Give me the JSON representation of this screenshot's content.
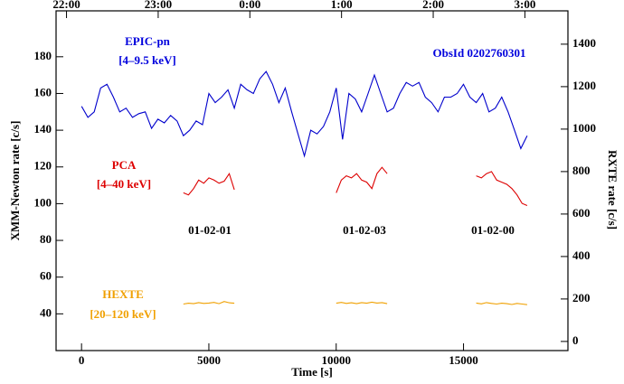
{
  "chart_data": {
    "type": "line",
    "xlabel": "Time [s]",
    "ylabel": "XMM-Newton rate [c/s]",
    "y2label": "RXTE rate [c/s]",
    "xlim": [
      -1000,
      19100
    ],
    "xticks": [
      0,
      5000,
      10000,
      15000
    ],
    "x2ticks": [
      {
        "value": -590,
        "label": "22:00"
      },
      {
        "value": 3010,
        "label": "23:00"
      },
      {
        "value": 6610,
        "label": "0:00"
      },
      {
        "value": 10210,
        "label": "1:00"
      },
      {
        "value": 13810,
        "label": "2:00"
      },
      {
        "value": 17410,
        "label": "3:00"
      }
    ],
    "ylim": [
      20,
      205
    ],
    "yticks": [
      40,
      60,
      80,
      100,
      120,
      140,
      160,
      180
    ],
    "y2lim": [
      -43,
      1557
    ],
    "y2ticks": [
      0,
      200,
      400,
      600,
      800,
      1000,
      1200,
      1400
    ],
    "annotations": [
      {
        "text": "EPIC-pn",
        "color": "#0000dd"
      },
      {
        "text": "[4–9.5 keV]",
        "color": "#0000dd"
      },
      {
        "text": "ObsId 0202760301",
        "color": "#0000dd"
      },
      {
        "text": "PCA",
        "color": "#dd0000"
      },
      {
        "text": "[4–40 keV]",
        "color": "#dd0000"
      },
      {
        "text": "01-02-01",
        "color": "#000000"
      },
      {
        "text": "01-02-03",
        "color": "#000000"
      },
      {
        "text": "01-02-00",
        "color": "#000000"
      },
      {
        "text": "HEXTE",
        "color": "#f0a000"
      },
      {
        "text": "[20–120 keV]",
        "color": "#f0a000"
      }
    ],
    "series": [
      {
        "color": "#0000cc",
        "axis": "y",
        "x": [
          0,
          250,
          500,
          750,
          1000,
          1250,
          1500,
          1750,
          2000,
          2250,
          2500,
          2750,
          3000,
          3250,
          3500,
          3750,
          4000,
          4250,
          4500,
          4750,
          5000,
          5250,
          5500,
          5750,
          6000,
          6250,
          6500,
          6750,
          7000,
          7250,
          7500,
          7750,
          8000,
          8250,
          8500,
          8750,
          9000,
          9250,
          9500,
          9750,
          10000,
          10250,
          10500,
          10750,
          11000,
          11250,
          11500,
          11750,
          12000,
          12250,
          12500,
          12750,
          13000,
          13250,
          13500,
          13750,
          14000,
          14250,
          14500,
          14750,
          15000,
          15250,
          15500,
          15750,
          16000,
          16250,
          16500,
          16750,
          17000,
          17250,
          17500
        ],
        "values": [
          153,
          147,
          150,
          163,
          165,
          158,
          150,
          152,
          147,
          149,
          150,
          141,
          146,
          144,
          148,
          145,
          137,
          140,
          145,
          143,
          160,
          155,
          158,
          162,
          152,
          165,
          162,
          160,
          168,
          172,
          165,
          155,
          163,
          150,
          138,
          126,
          140,
          138,
          142,
          150,
          163,
          135,
          160,
          157,
          150,
          160,
          170,
          160,
          150,
          152,
          160,
          166,
          164,
          166,
          158,
          155,
          150,
          158,
          158,
          160,
          165,
          158,
          155,
          160,
          150,
          152,
          158,
          150,
          140,
          130,
          137
        ]
      },
      {
        "color": "#dd0000",
        "axis": "y2",
        "x": [
          4000,
          4200,
          4400,
          4600,
          4800,
          5000,
          5200,
          5400,
          5600,
          5800,
          6000,
          null,
          10000,
          10200,
          10400,
          10600,
          10800,
          11000,
          11200,
          11400,
          11600,
          11800,
          12000,
          null,
          15500,
          15700,
          15900,
          16100,
          16300,
          16500,
          16700,
          16900,
          17100,
          17300,
          17500
        ],
        "values": [
          700,
          690,
          720,
          760,
          745,
          770,
          760,
          745,
          755,
          790,
          715,
          null,
          700,
          760,
          780,
          770,
          790,
          760,
          750,
          720,
          790,
          820,
          790,
          null,
          780,
          770,
          790,
          800,
          760,
          750,
          740,
          720,
          690,
          650,
          640
        ]
      },
      {
        "color": "#f0a000",
        "axis": "y2",
        "x": [
          4000,
          4200,
          4400,
          4600,
          4800,
          5000,
          5200,
          5400,
          5600,
          5800,
          6000,
          null,
          10000,
          10200,
          10400,
          10600,
          10800,
          11000,
          11200,
          11400,
          11600,
          11800,
          12000,
          null,
          15500,
          15700,
          15900,
          16100,
          16300,
          16500,
          16700,
          16900,
          17100,
          17300,
          17500
        ],
        "values": [
          176,
          180,
          178,
          183,
          179,
          181,
          184,
          178,
          188,
          182,
          180,
          null,
          180,
          184,
          179,
          182,
          178,
          183,
          180,
          185,
          181,
          183,
          178,
          null,
          181,
          177,
          183,
          179,
          176,
          180,
          178,
          174,
          179,
          176,
          173
        ]
      }
    ]
  }
}
